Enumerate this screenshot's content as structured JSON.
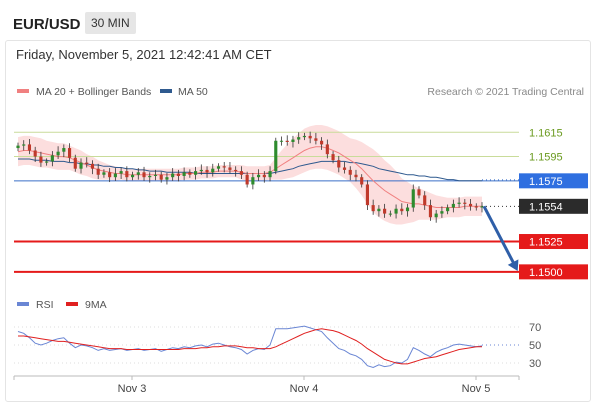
{
  "header": {
    "pair": "EUR/USD",
    "timeframe": "30 MIN",
    "datetime": "Friday, November 5, 2021 12:42:41 AM CET"
  },
  "legend": {
    "ma20_label": "MA 20 + Bollinger Bands",
    "ma50_label": "MA 50",
    "credit": "Research © 2021 Trading Central",
    "colors": {
      "ma20": "#f08080",
      "ma50": "#2f5a8f",
      "bands": "#fcd8d8"
    }
  },
  "rsi_legend": {
    "rsi_label": "RSI",
    "ma_label": "9MA",
    "colors": {
      "rsi": "#6a86d4",
      "ma": "#e02020"
    }
  },
  "chart_data": [
    {
      "type": "line",
      "title": "",
      "ylim": [
        1.149,
        1.1635
      ],
      "x_labels": [
        "Nov 3",
        "Nov 4",
        "Nov 5"
      ],
      "levels": [
        {
          "name": "resistance-2",
          "value": 1.1615,
          "label": "1.1615",
          "style": "green-thin"
        },
        {
          "name": "resistance-1",
          "value": 1.1595,
          "label": "1.1595",
          "style": "green-thin"
        },
        {
          "name": "pivot",
          "value": 1.1575,
          "label": "1.1575",
          "style": "blue"
        },
        {
          "name": "current",
          "value": 1.1554,
          "label": "1.1554",
          "style": "current"
        },
        {
          "name": "support-1",
          "value": 1.1525,
          "label": "1.1525",
          "style": "red"
        },
        {
          "name": "support-2",
          "value": 1.15,
          "label": "1.1500",
          "style": "red"
        }
      ],
      "price": [
        1.1604,
        1.1605,
        1.16,
        1.1595,
        1.159,
        1.1591,
        1.1596,
        1.1599,
        1.1602,
        1.1594,
        1.1585,
        1.159,
        1.1589,
        1.1585,
        1.158,
        1.1582,
        1.1578,
        1.1581,
        1.1583,
        1.1578,
        1.158,
        1.1582,
        1.1578,
        1.1579,
        1.158,
        1.1576,
        1.1578,
        1.1581,
        1.1579,
        1.1582,
        1.158,
        1.1583,
        1.1584,
        1.1582,
        1.1585,
        1.1587,
        1.1586,
        1.1584,
        1.1583,
        1.158,
        1.1572,
        1.1578,
        1.158,
        1.1578,
        1.1583,
        1.1608,
        1.1608,
        1.1607,
        1.1609,
        1.1611,
        1.1612,
        1.161,
        1.1608,
        1.1605,
        1.1597,
        1.1592,
        1.1586,
        1.1584,
        1.158,
        1.1578,
        1.1572,
        1.1555,
        1.155,
        1.1552,
        1.1548,
        1.1548,
        1.1552,
        1.155,
        1.1553,
        1.1568,
        1.1563,
        1.1555,
        1.1545,
        1.1548,
        1.155,
        1.1553,
        1.1556,
        1.1557,
        1.1556,
        1.1554,
        1.1553,
        1.1554
      ],
      "ma20": [
        1.1599,
        1.16,
        1.16,
        1.1599,
        1.1598,
        1.1597,
        1.1596,
        1.1595,
        1.1595,
        1.1594,
        1.1592,
        1.159,
        1.1588,
        1.1586,
        1.1584,
        1.1583,
        1.1582,
        1.1581,
        1.1581,
        1.158,
        1.158,
        1.158,
        1.158,
        1.158,
        1.158,
        1.158,
        1.158,
        1.158,
        1.158,
        1.1581,
        1.1581,
        1.1581,
        1.1582,
        1.1582,
        1.1582,
        1.1583,
        1.1583,
        1.1583,
        1.1583,
        1.1582,
        1.1581,
        1.1581,
        1.1581,
        1.1581,
        1.1582,
        1.1585,
        1.1588,
        1.1591,
        1.1594,
        1.1597,
        1.16,
        1.1602,
        1.1603,
        1.1603,
        1.1602,
        1.16,
        1.1598,
        1.1595,
        1.1592,
        1.1589,
        1.1585,
        1.158,
        1.1575,
        1.1571,
        1.1567,
        1.1564,
        1.1561,
        1.1558,
        1.1557,
        1.1556,
        1.1556,
        1.1555,
        1.1554,
        1.1553,
        1.1553,
        1.1553,
        1.1553,
        1.1553,
        1.1554,
        1.1554,
        1.1554,
        1.1554
      ],
      "ma50": [
        1.1593,
        1.1593,
        1.1593,
        1.1592,
        1.1592,
        1.1592,
        1.1591,
        1.1591,
        1.1591,
        1.159,
        1.159,
        1.1589,
        1.1589,
        1.1588,
        1.1588,
        1.1587,
        1.1587,
        1.1586,
        1.1586,
        1.1585,
        1.1585,
        1.1584,
        1.1584,
        1.1583,
        1.1583,
        1.1583,
        1.1582,
        1.1582,
        1.1582,
        1.1582,
        1.1582,
        1.1581,
        1.1581,
        1.1581,
        1.1581,
        1.1581,
        1.1581,
        1.1581,
        1.1581,
        1.1581,
        1.1581,
        1.1581,
        1.1581,
        1.1581,
        1.1581,
        1.1582,
        1.1583,
        1.1584,
        1.1585,
        1.1587,
        1.1588,
        1.1589,
        1.159,
        1.1591,
        1.1591,
        1.1591,
        1.1591,
        1.1591,
        1.159,
        1.159,
        1.1589,
        1.1588,
        1.1587,
        1.1585,
        1.1584,
        1.1583,
        1.1582,
        1.1581,
        1.158,
        1.158,
        1.1579,
        1.1579,
        1.1578,
        1.1578,
        1.1577,
        1.1576,
        1.1576,
        1.1575,
        1.1575,
        1.1575,
        1.1575,
        1.1575
      ],
      "band_width": [
        0.0012,
        0.0012,
        0.0012,
        0.0012,
        0.0012,
        0.0011,
        0.0011,
        0.0011,
        0.0011,
        0.001,
        0.001,
        0.001,
        0.0009,
        0.0009,
        0.0008,
        0.0007,
        0.0006,
        0.0006,
        0.0005,
        0.0005,
        0.0005,
        0.0005,
        0.0005,
        0.0005,
        0.0005,
        0.0005,
        0.0005,
        0.0005,
        0.0005,
        0.0005,
        0.0005,
        0.0005,
        0.0005,
        0.0005,
        0.0005,
        0.0005,
        0.0005,
        0.0005,
        0.0005,
        0.0006,
        0.0006,
        0.0006,
        0.0006,
        0.0006,
        0.0006,
        0.0009,
        0.0012,
        0.0014,
        0.0016,
        0.0017,
        0.0018,
        0.0018,
        0.0018,
        0.0018,
        0.0018,
        0.0018,
        0.0018,
        0.0018,
        0.0018,
        0.002,
        0.0022,
        0.0024,
        0.0026,
        0.0026,
        0.0025,
        0.0024,
        0.0022,
        0.0019,
        0.0017,
        0.0015,
        0.0013,
        0.0012,
        0.0011,
        0.001,
        0.0009,
        0.0008,
        0.0008,
        0.0008,
        0.0008,
        0.0008,
        0.0008,
        0.0008
      ],
      "forecast": {
        "from": 1.1554,
        "to": 1.15
      }
    },
    {
      "type": "line",
      "title": "",
      "ylim": [
        20,
        80
      ],
      "ticks": [
        70,
        50,
        30
      ],
      "tick_labels": [
        "70",
        "50",
        "30"
      ],
      "rsi": [
        65,
        63,
        58,
        52,
        50,
        52,
        55,
        57,
        58,
        52,
        47,
        50,
        49,
        47,
        44,
        46,
        44,
        45,
        46,
        44,
        45,
        46,
        44,
        45,
        46,
        43,
        45,
        47,
        46,
        48,
        47,
        49,
        50,
        48,
        51,
        52,
        50,
        48,
        47,
        45,
        40,
        44,
        46,
        45,
        50,
        68,
        68,
        68,
        69,
        70,
        71,
        69,
        67,
        65,
        58,
        52,
        46,
        44,
        40,
        38,
        34,
        27,
        25,
        28,
        26,
        27,
        31,
        30,
        34,
        47,
        44,
        40,
        37,
        42,
        45,
        47,
        50,
        51,
        50,
        49,
        48,
        49
      ],
      "ma": [
        60,
        60,
        59,
        58,
        57,
        56,
        55,
        54,
        54,
        53,
        52,
        51,
        50,
        49,
        48,
        47,
        46,
        46,
        46,
        45,
        45,
        45,
        45,
        45,
        45,
        45,
        45,
        45,
        45,
        46,
        46,
        46,
        47,
        47,
        48,
        48,
        49,
        49,
        49,
        48,
        47,
        47,
        46,
        46,
        46,
        48,
        51,
        54,
        57,
        60,
        63,
        65,
        67,
        68,
        67,
        66,
        64,
        61,
        58,
        55,
        51,
        46,
        42,
        38,
        34,
        32,
        30,
        29,
        29,
        31,
        33,
        35,
        36,
        37,
        39,
        41,
        43,
        45,
        46,
        47,
        48,
        48
      ]
    }
  ]
}
